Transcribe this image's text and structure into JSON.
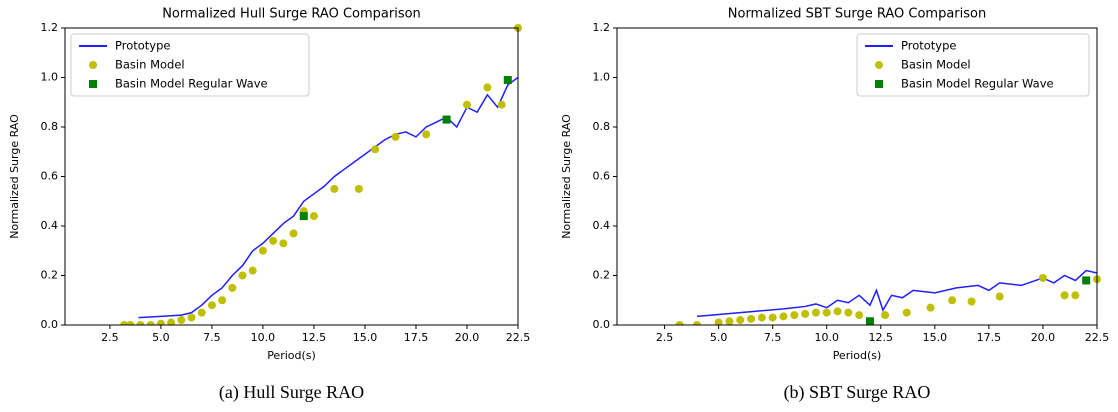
{
  "chart_data": [
    {
      "type": "line",
      "title": "Normalized Hull Surge RAO Comparison",
      "xlabel": "Period(s)",
      "ylabel": "Normalized Surge RAO",
      "caption": "(a) Hull Surge RAO",
      "xlim": [
        0.3,
        22.5
      ],
      "ylim": [
        0,
        1.2
      ],
      "xticks": [
        2.5,
        {
          "value": 5,
          "label": "5.0"
        },
        7.5,
        {
          "value": 10,
          "label": "10.0"
        },
        12.5,
        {
          "value": 15,
          "label": "15.0"
        },
        17.5,
        {
          "value": 20,
          "label": "20.0"
        },
        22.5
      ],
      "yticks": [
        {
          "value": 0,
          "label": "0.0"
        },
        0.2,
        0.4,
        0.6,
        0.8,
        {
          "value": 1,
          "label": "1.0"
        },
        1.2
      ],
      "legend": "upper left",
      "series": [
        {
          "name": "Prototype",
          "color": "#1f1fff",
          "kind": "line",
          "x": [
            3.9,
            5,
            6,
            6.5,
            7,
            7.5,
            8,
            8.5,
            9,
            9.5,
            10,
            10.5,
            11,
            11.5,
            12,
            12.5,
            13,
            13.5,
            14,
            14.5,
            15,
            15.5,
            16,
            16.5,
            17,
            17.5,
            18,
            18.5,
            19,
            19.5,
            20,
            20.5,
            21,
            21.5,
            22,
            22.5
          ],
          "values": [
            0.03,
            0.035,
            0.04,
            0.05,
            0.08,
            0.12,
            0.15,
            0.2,
            0.24,
            0.3,
            0.33,
            0.37,
            0.41,
            0.44,
            0.5,
            0.53,
            0.56,
            0.6,
            0.63,
            0.66,
            0.69,
            0.72,
            0.75,
            0.77,
            0.78,
            0.76,
            0.8,
            0.82,
            0.84,
            0.8,
            0.88,
            0.86,
            0.93,
            0.88,
            0.97,
            1.0
          ]
        },
        {
          "name": "Basin Model",
          "color": "#bfbf00",
          "kind": "scatter",
          "marker": "circle",
          "x": [
            3.2,
            3.5,
            4,
            4.5,
            5,
            5.5,
            6,
            6.5,
            7,
            7.5,
            8,
            8.5,
            9,
            9.5,
            10,
            10.5,
            11,
            11.5,
            12,
            12.5,
            13.5,
            14.7,
            15.5,
            16.5,
            18,
            20,
            21,
            21.7,
            22.5
          ],
          "values": [
            0,
            0,
            0,
            0,
            0.005,
            0.01,
            0.02,
            0.03,
            0.05,
            0.08,
            0.1,
            0.15,
            0.2,
            0.22,
            0.3,
            0.34,
            0.33,
            0.37,
            0.46,
            0.44,
            0.55,
            0.55,
            0.71,
            0.76,
            0.77,
            0.89,
            0.96,
            0.89,
            1.2
          ]
        },
        {
          "name": "Basin Model Regular Wave",
          "color": "#007f00",
          "kind": "scatter",
          "marker": "square",
          "x": [
            12,
            19,
            22
          ],
          "values": [
            0.44,
            0.83,
            0.99
          ]
        }
      ]
    },
    {
      "type": "line",
      "title": "Normalized SBT Surge RAO Comparison",
      "xlabel": "Period(s)",
      "ylabel": "Normalized Surge RAO",
      "caption": "(b) SBT Surge RAO",
      "xlim": [
        0.3,
        22.5
      ],
      "ylim": [
        0,
        1.2
      ],
      "xticks": [
        2.5,
        {
          "value": 5,
          "label": "5.0"
        },
        7.5,
        {
          "value": 10,
          "label": "10.0"
        },
        12.5,
        {
          "value": 15,
          "label": "15.0"
        },
        17.5,
        {
          "value": 20,
          "label": "20.0"
        },
        22.5
      ],
      "yticks": [
        {
          "value": 0,
          "label": "0.0"
        },
        0.2,
        0.4,
        0.6,
        0.8,
        {
          "value": 1,
          "label": "1.0"
        },
        1.2
      ],
      "legend": "upper right",
      "series": [
        {
          "name": "Prototype",
          "color": "#1f1fff",
          "kind": "line",
          "x": [
            4,
            6,
            8,
            9,
            9.5,
            10,
            10.5,
            11,
            11.5,
            12,
            12.3,
            12.6,
            13,
            13.5,
            14,
            15,
            16,
            17,
            17.5,
            18,
            19,
            20,
            20.5,
            21,
            21.5,
            22,
            22.5
          ],
          "values": [
            0.035,
            0.05,
            0.065,
            0.075,
            0.085,
            0.07,
            0.1,
            0.09,
            0.12,
            0.08,
            0.14,
            0.06,
            0.12,
            0.11,
            0.14,
            0.13,
            0.15,
            0.16,
            0.14,
            0.17,
            0.16,
            0.19,
            0.17,
            0.2,
            0.18,
            0.22,
            0.21
          ]
        },
        {
          "name": "Basin Model",
          "color": "#bfbf00",
          "kind": "scatter",
          "marker": "circle",
          "x": [
            3.2,
            4,
            5,
            5.5,
            6,
            6.5,
            7,
            7.5,
            8,
            8.5,
            9,
            9.5,
            10,
            10.5,
            11,
            11.5,
            12.7,
            13.7,
            14.8,
            15.8,
            16.7,
            18,
            20,
            21,
            21.5,
            22.5
          ],
          "values": [
            0,
            0,
            0.01,
            0.015,
            0.02,
            0.025,
            0.03,
            0.03,
            0.035,
            0.04,
            0.045,
            0.05,
            0.05,
            0.055,
            0.05,
            0.04,
            0.04,
            0.05,
            0.07,
            0.1,
            0.095,
            0.115,
            0.19,
            0.12,
            0.12,
            0.185
          ]
        },
        {
          "name": "Basin Model Regular Wave",
          "color": "#007f00",
          "kind": "scatter",
          "marker": "square",
          "x": [
            12,
            22
          ],
          "values": [
            0.015,
            0.18
          ]
        }
      ]
    }
  ]
}
